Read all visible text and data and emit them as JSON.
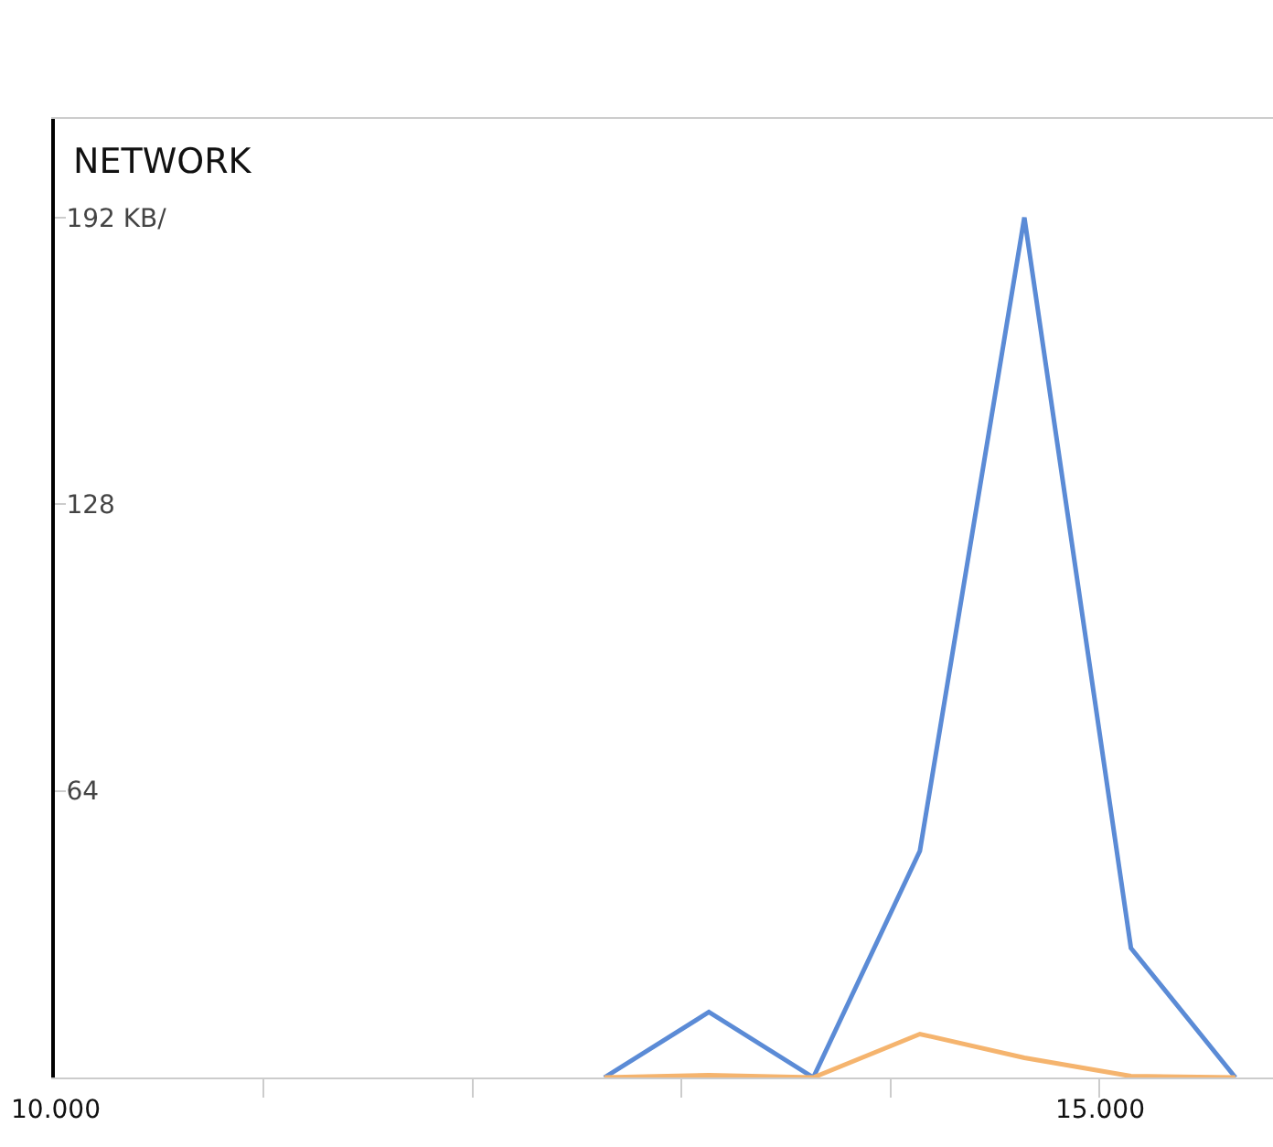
{
  "chart_data": {
    "type": "line",
    "title": "NETWORK",
    "x": [
      12.63,
      13.13,
      13.63,
      14.14,
      14.64,
      15.15,
      15.65
    ],
    "series": [
      {
        "color": "#5b8bd6",
        "values": [
          0,
          14.6,
          0,
          50.6,
          192,
          28.9,
          0
        ]
      },
      {
        "color": "#f5b46e",
        "values": [
          0,
          0.5,
          0,
          9.7,
          4.4,
          0.3,
          0
        ]
      }
    ],
    "xlim": [
      10,
      15.83
    ],
    "ylim": [
      0,
      214
    ],
    "xticks": [
      {
        "value": 10,
        "label": "10.000"
      },
      {
        "value": 11,
        "label": null
      },
      {
        "value": 12,
        "label": null
      },
      {
        "value": 13,
        "label": null
      },
      {
        "value": 14,
        "label": null
      },
      {
        "value": 15,
        "label": "15.000"
      }
    ],
    "yticks": [
      {
        "value": 64,
        "label": "64"
      },
      {
        "value": 128,
        "label": "128"
      },
      {
        "value": 192,
        "label": "192 KB/"
      }
    ],
    "marker": "none",
    "line_style": "solid"
  }
}
